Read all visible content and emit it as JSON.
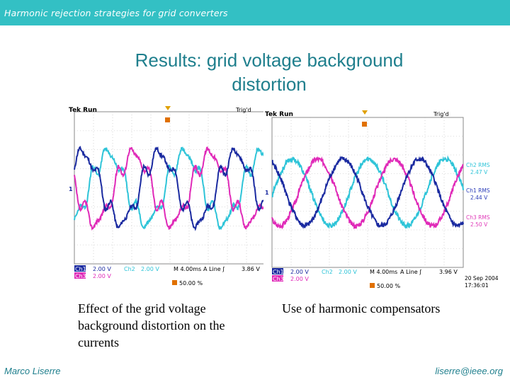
{
  "header": {
    "title": "Harmonic rejection strategies for grid converters"
  },
  "slide": {
    "title_line1": "Results: grid voltage background",
    "title_line2": "distortion"
  },
  "scopes": [
    {
      "id": "left",
      "status": "Tek Run",
      "trig": "Trig'd",
      "readout": {
        "ch1": "Ch1",
        "ch1_scale": "2.00 V",
        "ch2": "Ch2",
        "ch2_scale": "2.00 V",
        "timebase": "M 4.00ms",
        "trigger_src": "A  Line  ʃ",
        "trigger_level": "3.86 V",
        "ch3": "Ch3",
        "ch3_scale": "2.00 V",
        "trigger_pos": "50.00 %"
      }
    },
    {
      "id": "right",
      "status": "Tek Run",
      "trig": "Trig'd",
      "readout": {
        "ch1": "Ch1",
        "ch1_scale": "2.00 V",
        "ch2": "Ch2",
        "ch2_scale": "2.00 V",
        "timebase": "M 4.00ms",
        "trigger_src": "A  Line  ʃ",
        "trigger_level": "3.96 V",
        "ch3": "Ch3",
        "ch3_scale": "2.00 V",
        "trigger_pos": "50.00 %"
      },
      "measurements": [
        {
          "label": "Ch2 RMS",
          "value": "2.47 V",
          "color": "#2ec4d8"
        },
        {
          "label": "Ch1 RMS",
          "value": "2.44 V",
          "color": "#2a3bb8"
        },
        {
          "label": "Ch3 RMS",
          "value": "2.50 V",
          "color": "#e03ab8"
        }
      ],
      "date": "20 Sep 2004",
      "time": "17:36:01"
    }
  ],
  "captions": {
    "left": [
      "Effect of the grid voltage",
      "background distortion on the",
      "currents"
    ],
    "right": "Use of harmonic compensators"
  },
  "footer": {
    "author": "Marco Liserre",
    "email": "liserre@ieee.org"
  },
  "colors": {
    "ch1": "#1a2aa0",
    "ch2": "#2ec4d8",
    "ch3": "#e02ab8",
    "bar": "#33c0c4",
    "title": "#1f7f8d"
  }
}
